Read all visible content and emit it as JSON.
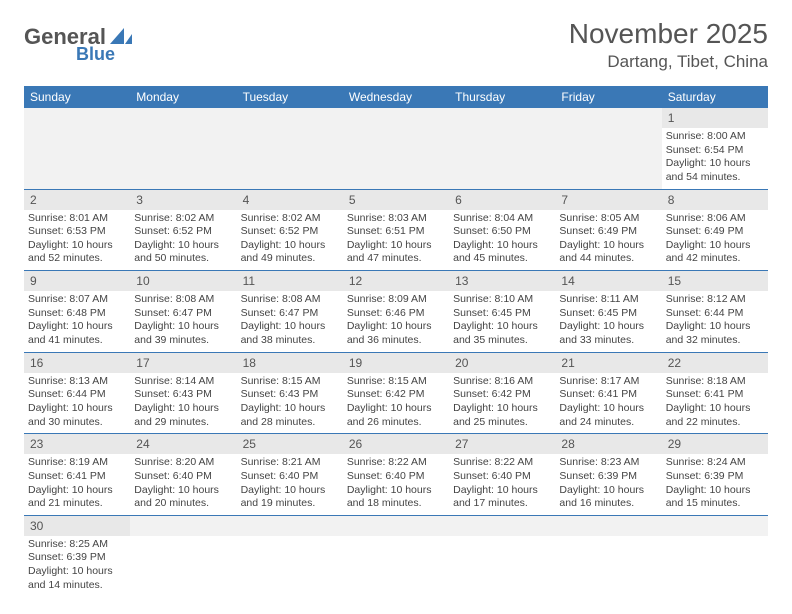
{
  "logo": {
    "text1": "General",
    "text2": "Blue"
  },
  "title": "November 2025",
  "location": "Dartang, Tibet, China",
  "colors": {
    "header_bg": "#3a78b6",
    "header_fg": "#ffffff",
    "daynum_bg": "#e8e8e8",
    "blank_bg": "#f2f2f2",
    "border": "#3a78b6",
    "text": "#444444",
    "title": "#555555"
  },
  "day_headers": [
    "Sunday",
    "Monday",
    "Tuesday",
    "Wednesday",
    "Thursday",
    "Friday",
    "Saturday"
  ],
  "weeks": [
    [
      null,
      null,
      null,
      null,
      null,
      null,
      {
        "d": "1",
        "sr": "8:00 AM",
        "ss": "6:54 PM",
        "dl": "10 hours and 54 minutes."
      }
    ],
    [
      {
        "d": "2",
        "sr": "8:01 AM",
        "ss": "6:53 PM",
        "dl": "10 hours and 52 minutes."
      },
      {
        "d": "3",
        "sr": "8:02 AM",
        "ss": "6:52 PM",
        "dl": "10 hours and 50 minutes."
      },
      {
        "d": "4",
        "sr": "8:02 AM",
        "ss": "6:52 PM",
        "dl": "10 hours and 49 minutes."
      },
      {
        "d": "5",
        "sr": "8:03 AM",
        "ss": "6:51 PM",
        "dl": "10 hours and 47 minutes."
      },
      {
        "d": "6",
        "sr": "8:04 AM",
        "ss": "6:50 PM",
        "dl": "10 hours and 45 minutes."
      },
      {
        "d": "7",
        "sr": "8:05 AM",
        "ss": "6:49 PM",
        "dl": "10 hours and 44 minutes."
      },
      {
        "d": "8",
        "sr": "8:06 AM",
        "ss": "6:49 PM",
        "dl": "10 hours and 42 minutes."
      }
    ],
    [
      {
        "d": "9",
        "sr": "8:07 AM",
        "ss": "6:48 PM",
        "dl": "10 hours and 41 minutes."
      },
      {
        "d": "10",
        "sr": "8:08 AM",
        "ss": "6:47 PM",
        "dl": "10 hours and 39 minutes."
      },
      {
        "d": "11",
        "sr": "8:08 AM",
        "ss": "6:47 PM",
        "dl": "10 hours and 38 minutes."
      },
      {
        "d": "12",
        "sr": "8:09 AM",
        "ss": "6:46 PM",
        "dl": "10 hours and 36 minutes."
      },
      {
        "d": "13",
        "sr": "8:10 AM",
        "ss": "6:45 PM",
        "dl": "10 hours and 35 minutes."
      },
      {
        "d": "14",
        "sr": "8:11 AM",
        "ss": "6:45 PM",
        "dl": "10 hours and 33 minutes."
      },
      {
        "d": "15",
        "sr": "8:12 AM",
        "ss": "6:44 PM",
        "dl": "10 hours and 32 minutes."
      }
    ],
    [
      {
        "d": "16",
        "sr": "8:13 AM",
        "ss": "6:44 PM",
        "dl": "10 hours and 30 minutes."
      },
      {
        "d": "17",
        "sr": "8:14 AM",
        "ss": "6:43 PM",
        "dl": "10 hours and 29 minutes."
      },
      {
        "d": "18",
        "sr": "8:15 AM",
        "ss": "6:43 PM",
        "dl": "10 hours and 28 minutes."
      },
      {
        "d": "19",
        "sr": "8:15 AM",
        "ss": "6:42 PM",
        "dl": "10 hours and 26 minutes."
      },
      {
        "d": "20",
        "sr": "8:16 AM",
        "ss": "6:42 PM",
        "dl": "10 hours and 25 minutes."
      },
      {
        "d": "21",
        "sr": "8:17 AM",
        "ss": "6:41 PM",
        "dl": "10 hours and 24 minutes."
      },
      {
        "d": "22",
        "sr": "8:18 AM",
        "ss": "6:41 PM",
        "dl": "10 hours and 22 minutes."
      }
    ],
    [
      {
        "d": "23",
        "sr": "8:19 AM",
        "ss": "6:41 PM",
        "dl": "10 hours and 21 minutes."
      },
      {
        "d": "24",
        "sr": "8:20 AM",
        "ss": "6:40 PM",
        "dl": "10 hours and 20 minutes."
      },
      {
        "d": "25",
        "sr": "8:21 AM",
        "ss": "6:40 PM",
        "dl": "10 hours and 19 minutes."
      },
      {
        "d": "26",
        "sr": "8:22 AM",
        "ss": "6:40 PM",
        "dl": "10 hours and 18 minutes."
      },
      {
        "d": "27",
        "sr": "8:22 AM",
        "ss": "6:40 PM",
        "dl": "10 hours and 17 minutes."
      },
      {
        "d": "28",
        "sr": "8:23 AM",
        "ss": "6:39 PM",
        "dl": "10 hours and 16 minutes."
      },
      {
        "d": "29",
        "sr": "8:24 AM",
        "ss": "6:39 PM",
        "dl": "10 hours and 15 minutes."
      }
    ],
    [
      {
        "d": "30",
        "sr": "8:25 AM",
        "ss": "6:39 PM",
        "dl": "10 hours and 14 minutes."
      },
      null,
      null,
      null,
      null,
      null,
      null
    ]
  ],
  "labels": {
    "sunrise": "Sunrise:",
    "sunset": "Sunset:",
    "daylight": "Daylight:"
  }
}
